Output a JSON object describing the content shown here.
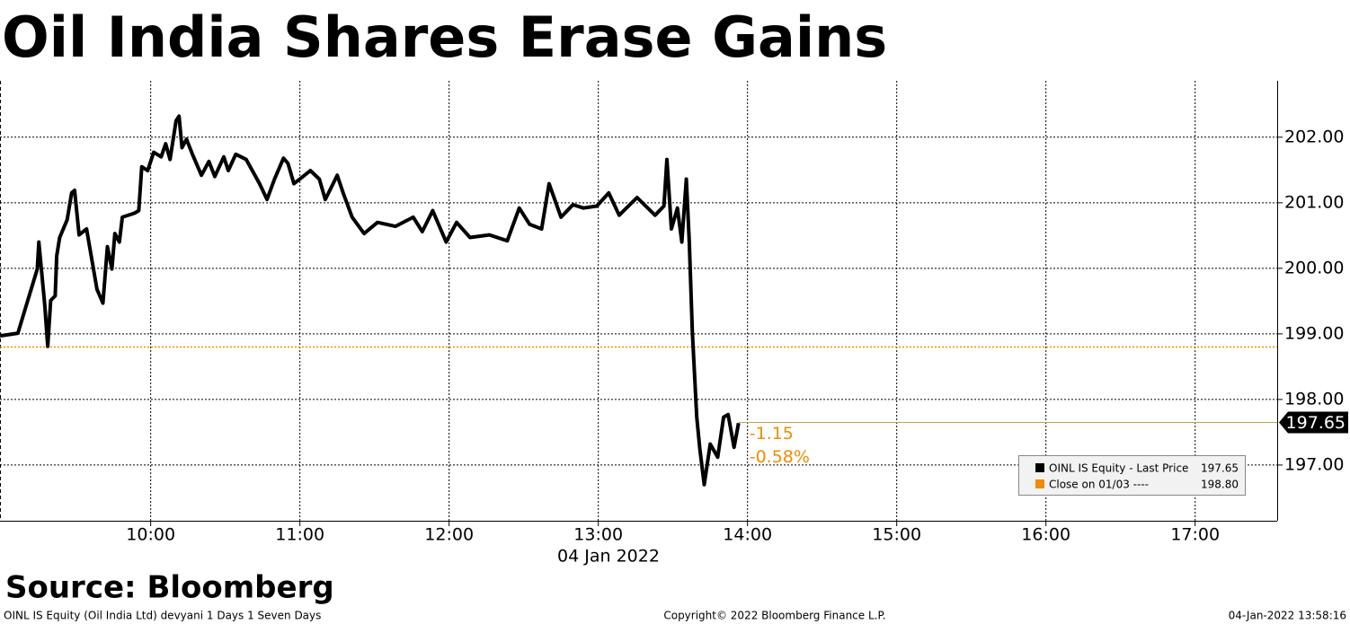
{
  "chart_data": {
    "type": "line",
    "title": "Oil India Shares Erase Gains",
    "x_label": "04 Jan 2022",
    "xlim": [
      8.99,
      17.55
    ],
    "ylim": [
      196.15,
      202.86
    ],
    "xticks": [
      {
        "value": 10,
        "label": "10:00"
      },
      {
        "value": 11,
        "label": "11:00"
      },
      {
        "value": 12,
        "label": "12:00"
      },
      {
        "value": 13,
        "label": "13:00"
      },
      {
        "value": 14,
        "label": "14:00"
      },
      {
        "value": 15,
        "label": "15:00"
      },
      {
        "value": 16,
        "label": "16:00"
      },
      {
        "value": 17,
        "label": "17:00"
      }
    ],
    "yticks": [
      {
        "value": 197,
        "label": "197.00"
      },
      {
        "value": 198,
        "label": "198.00"
      },
      {
        "value": 199,
        "label": "199.00"
      },
      {
        "value": 200,
        "label": "200.00"
      },
      {
        "value": 201,
        "label": "201.00"
      },
      {
        "value": 202,
        "label": "202.00"
      }
    ],
    "grid": true,
    "x": [
      8.99,
      9.11,
      9.24,
      9.25,
      9.29,
      9.31,
      9.33,
      9.36,
      9.37,
      9.39,
      9.44,
      9.47,
      9.49,
      9.52,
      9.57,
      9.64,
      9.68,
      9.71,
      9.74,
      9.76,
      9.79,
      9.81,
      9.89,
      9.92,
      9.94,
      9.98,
      10.02,
      10.07,
      10.1,
      10.13,
      10.17,
      10.19,
      10.21,
      10.24,
      10.28,
      10.34,
      10.39,
      10.43,
      10.49,
      10.52,
      10.57,
      10.64,
      10.73,
      10.78,
      10.83,
      10.89,
      10.92,
      10.96,
      11.01,
      11.07,
      11.13,
      11.17,
      11.25,
      11.29,
      11.35,
      11.43,
      11.52,
      11.64,
      11.76,
      11.82,
      11.89,
      11.98,
      12.05,
      12.14,
      12.27,
      12.39,
      12.47,
      12.54,
      12.62,
      12.67,
      12.75,
      12.83,
      12.9,
      12.99,
      13.07,
      13.14,
      13.26,
      13.38,
      13.44,
      13.46,
      13.49,
      13.53,
      13.56,
      13.59,
      13.61,
      13.63,
      13.66,
      13.68,
      13.71,
      13.75,
      13.8,
      13.84,
      13.87,
      13.91,
      13.94
    ],
    "series": [
      {
        "name": "OINL IS Equity - Last Price",
        "color": "#000000",
        "values": [
          198.97,
          199.01,
          199.99,
          200.4,
          199.44,
          198.81,
          199.51,
          199.58,
          200.19,
          200.47,
          200.74,
          201.15,
          201.19,
          200.51,
          200.6,
          199.68,
          199.47,
          200.33,
          199.99,
          200.53,
          200.4,
          200.78,
          200.84,
          200.88,
          201.55,
          201.49,
          201.77,
          201.7,
          201.9,
          201.66,
          202.25,
          202.32,
          201.84,
          201.97,
          201.74,
          201.42,
          201.63,
          201.4,
          201.7,
          201.49,
          201.74,
          201.66,
          201.29,
          201.05,
          201.36,
          201.68,
          201.6,
          201.29,
          201.38,
          201.49,
          201.36,
          201.05,
          201.42,
          201.15,
          200.78,
          200.53,
          200.7,
          200.64,
          200.78,
          200.56,
          200.88,
          200.4,
          200.7,
          200.47,
          200.51,
          200.42,
          200.92,
          200.67,
          200.6,
          201.29,
          200.78,
          200.97,
          200.92,
          200.95,
          201.15,
          200.81,
          201.08,
          200.81,
          200.95,
          201.66,
          200.6,
          200.92,
          200.4,
          201.36,
          200.4,
          199.03,
          197.73,
          197.25,
          196.7,
          197.32,
          197.12,
          197.73,
          197.77,
          197.27,
          197.64
        ]
      }
    ],
    "last_price": 197.65,
    "last_price_color": "#c8a040",
    "reference": {
      "name": "Close on 01/03 ----",
      "value": 198.8,
      "label": "198.80",
      "color": "#f08c00"
    },
    "annotations": [
      "-1.15",
      "-0.58%"
    ]
  },
  "footer": {
    "source": "Source: Bloomberg",
    "left": "OINL IS Equity (Oil India Ltd) devyani 1 Days 1 Seven Days",
    "center": "Copyright© 2022 Bloomberg Finance L.P.",
    "right": "04-Jan-2022 13:58:16"
  }
}
